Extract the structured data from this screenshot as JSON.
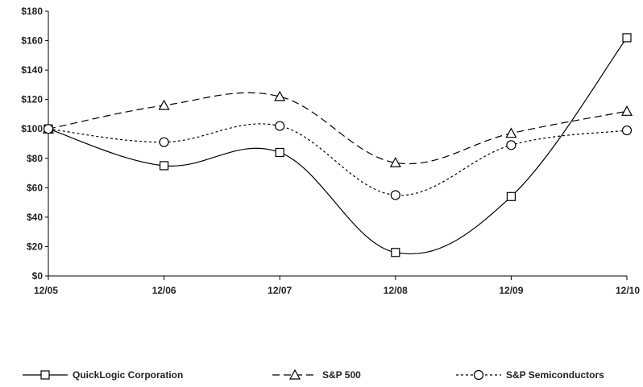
{
  "chart_data": {
    "type": "line",
    "title": "",
    "xlabel": "",
    "ylabel": "",
    "categories": [
      "12/05",
      "12/06",
      "12/07",
      "12/08",
      "12/09",
      "12/10"
    ],
    "ylim": [
      0,
      180
    ],
    "y_ticks": [
      0,
      20,
      40,
      60,
      80,
      100,
      120,
      140,
      160,
      180
    ],
    "y_tick_labels": [
      "$0",
      "$20",
      "$40",
      "$60",
      "$80",
      "$100",
      "$120",
      "$140",
      "$160",
      "$180"
    ],
    "grid": false,
    "legend_position": "bottom",
    "series": [
      {
        "name": "QuickLogic Corporation",
        "values": [
          100,
          75,
          84,
          16,
          54,
          162
        ],
        "marker": "square",
        "dash": "solid",
        "color": "#000000"
      },
      {
        "name": "S&P 500",
        "values": [
          100,
          116,
          122,
          77,
          97,
          112
        ],
        "marker": "triangle",
        "dash": "dashed",
        "color": "#000000"
      },
      {
        "name": "S&P Semiconductors",
        "values": [
          100,
          91,
          102,
          55,
          89,
          99
        ],
        "marker": "circle",
        "dash": "dotted",
        "color": "#000000"
      }
    ]
  }
}
